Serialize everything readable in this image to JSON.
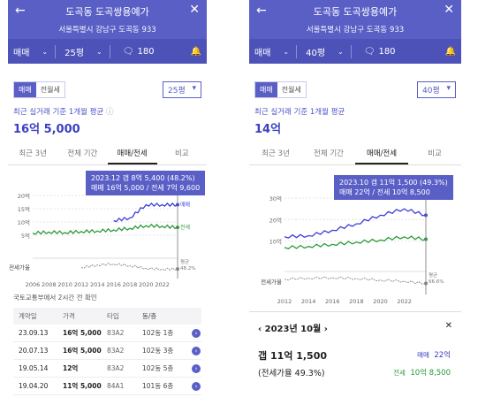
{
  "left": {
    "title": "도곡동 도곡쌍용예가",
    "address": "서울특별시 강남구 도곡동 933",
    "deal_type": "매매",
    "area": "25평",
    "comment_count": "180",
    "toggle": {
      "sale": "매매",
      "rent": "전월세"
    },
    "area_select": "25평",
    "avg_label": "최근 실거래 기준 1개월 평균",
    "avg_value": "16억 5,000",
    "tabs": [
      "최근 3년",
      "전체 기간",
      "매매/전세",
      "비교"
    ],
    "tooltip": {
      "line1": "2023.12  갭 8억 5,400 (48.2%)",
      "line2": "매매 16억 5,000 / 전세 7억 9,600"
    },
    "y_ticks": [
      "20억",
      "15억",
      "10억",
      "5억"
    ],
    "ratio_label": "전세가율",
    "x_ticks": [
      "2006",
      "2008",
      "2010",
      "2012",
      "2014",
      "2016",
      "2018",
      "2020",
      "2022"
    ],
    "series_labels": {
      "sale": "매매",
      "jeonse": "전세",
      "ratio": "평균",
      "ratio_val": "48.2%"
    },
    "source": "국토교통부에서 2시간 전 확인",
    "table_headers": [
      "계약일",
      "가격",
      "타입",
      "동/층"
    ],
    "rows": [
      {
        "date": "23.09.13",
        "price": "16억 5,000",
        "type": "83A2",
        "unit": "102동 1층"
      },
      {
        "date": "20.07.13",
        "price": "16억 5,000",
        "type": "83A2",
        "unit": "102동 3층"
      },
      {
        "date": "19.05.14",
        "price": "12억",
        "type": "83A2",
        "unit": "102동 5층"
      },
      {
        "date": "19.04.20",
        "price": "11억 5,000",
        "type": "84A1",
        "unit": "101동 6층"
      }
    ]
  },
  "right": {
    "title": "도곡동 도곡쌍용예가",
    "address": "서울특별시 강남구 도곡동 933",
    "deal_type": "매매",
    "area": "40평",
    "comment_count": "180",
    "toggle": {
      "sale": "매매",
      "rent": "전월세"
    },
    "area_select": "40평",
    "avg_label": "최근 실거래 기준 1개월 평균",
    "avg_value": "14억",
    "tabs": [
      "최근 3년",
      "전체 기간",
      "매매/전세",
      "비교"
    ],
    "tooltip": {
      "line1": "2023.10  갭 11억 1,500 (49.3%)",
      "line2": "매매 22억 / 전세 10억 8,500"
    },
    "y_ticks": [
      "30억",
      "20억",
      "10억"
    ],
    "ratio_label": "전세가율",
    "x_ticks": [
      "2012",
      "2014",
      "2016",
      "2018",
      "2020",
      "2022"
    ],
    "series_labels": {
      "ratio": "평균",
      "ratio_val": "66.6%"
    },
    "detail": {
      "month": "2023년 10월",
      "gap": "갭 11억 1,500",
      "ratio": "(전세가율 49.3%)",
      "sale_label": "매매",
      "sale_value": "22억",
      "jeonse_label": "전세",
      "jeonse_value": "10억 8,500"
    }
  },
  "chart_data": [
    {
      "type": "line",
      "title": "",
      "x": [
        2006,
        2008,
        2010,
        2012,
        2014,
        2016,
        2018,
        2020,
        2022,
        2023.9
      ],
      "ylim": [
        0,
        22
      ],
      "series": [
        {
          "name": "매매",
          "values": [
            null,
            null,
            null,
            null,
            null,
            10.5,
            11.5,
            16.5,
            16.5,
            16.5
          ]
        },
        {
          "name": "전세",
          "values": [
            5.8,
            6.2,
            6.0,
            6.4,
            6.6,
            7.0,
            7.6,
            8.6,
            8.4,
            7.96
          ]
        },
        {
          "name": "전세가율",
          "values": [
            null,
            null,
            null,
            52,
            60,
            63,
            58,
            50,
            47,
            48.2
          ]
        }
      ],
      "colors": {
        "sale": "#3a40d8",
        "jeonse": "#2e9a3a",
        "grey": "#888888"
      }
    },
    {
      "type": "line",
      "title": "",
      "x": [
        2012,
        2014,
        2016,
        2018,
        2020,
        2022,
        2023.8
      ],
      "ylim": [
        0,
        32
      ],
      "series": [
        {
          "name": "매매",
          "values": [
            12,
            12.5,
            15,
            18,
            22,
            25,
            22
          ]
        },
        {
          "name": "전세",
          "values": [
            7,
            7.5,
            8.5,
            9.5,
            10.5,
            12,
            10.85
          ]
        },
        {
          "name": "전세가율",
          "values": [
            60,
            63,
            64,
            62,
            58,
            55,
            49.3
          ]
        }
      ],
      "colors": {
        "sale": "#3a40d8",
        "jeonse": "#2e9a3a",
        "grey": "#888888"
      }
    }
  ]
}
